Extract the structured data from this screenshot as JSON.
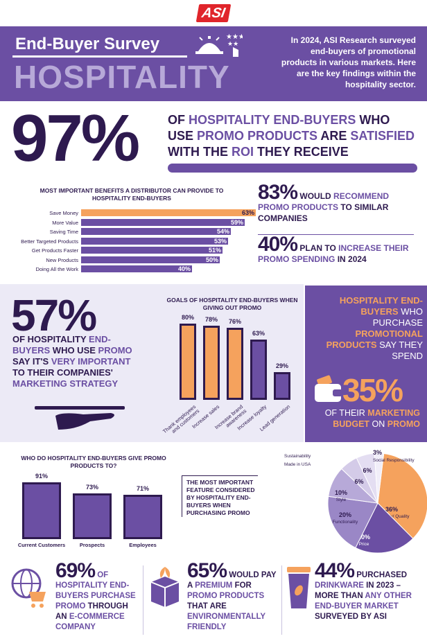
{
  "logo": "ASI",
  "header": {
    "title": "End-Buyer Survey",
    "subtitle": "HOSPITALITY",
    "description": "In 2024, ASI Research surveyed end-buyers of promotional products in various markets. Here are the key findings within the hospitality sector."
  },
  "stat97": {
    "number": "97%",
    "t1": "OF ",
    "t2": "HOSPITALITY END-BUYERS",
    "t3": " WHO USE ",
    "t4": "PROMO PRODUCTS",
    "t5": " ARE ",
    "t6": "SATISFIED",
    "t7": " WITH THE ",
    "t8": "ROI",
    "t9": " THEY RECEIVE"
  },
  "benefits": {
    "title": "MOST IMPORTANT BENEFITS A DISTRIBUTOR CAN PROVIDE TO HOSPITALITY END-BUYERS",
    "rows": [
      {
        "label": "Save Money",
        "value": "63%",
        "pct": 63,
        "highlight": true
      },
      {
        "label": "More Value",
        "value": "59%",
        "pct": 59,
        "highlight": false
      },
      {
        "label": "Saving Time",
        "value": "54%",
        "pct": 54,
        "highlight": false
      },
      {
        "label": "Better Targeted Products",
        "value": "53%",
        "pct": 53,
        "highlight": false
      },
      {
        "label": "Get Products Faster",
        "value": "51%",
        "pct": 51,
        "highlight": false
      },
      {
        "label": "New Products",
        "value": "50%",
        "pct": 50,
        "highlight": false
      },
      {
        "label": "Doing All the Work",
        "value": "40%",
        "pct": 40,
        "highlight": false
      }
    ]
  },
  "stat83": {
    "number": "83%",
    "t1": " WOULD ",
    "t2": "RECOMMEND PROMO PRODUCTS",
    "t3": " TO SIMILAR COMPANIES"
  },
  "stat40": {
    "number": "40%",
    "t1": " PLAN TO ",
    "t2": "INCREASE",
    "t3": " THEIR PROMO SPENDING",
    "t4": " IN 2024"
  },
  "stat57": {
    "number": "57%",
    "t1": "OF HOSPITALITY ",
    "t2": "END-BUYERS",
    "t3": " WHO USE ",
    "t4": "PROMO",
    "t5": " SAY IT'S ",
    "t6": "VERY IMPORTANT",
    "t7": " TO THEIR COMPANIES' ",
    "t8": "MARKETING STRATEGY"
  },
  "goals": {
    "title": "GOALS OF HOSPITALITY END-BUYERS WHEN GIVING OUT PROMO",
    "items": [
      {
        "label": "Thank employees and customers",
        "value": "80%",
        "pct": 80,
        "color": "#f5a25d"
      },
      {
        "label": "Increase sales",
        "value": "78%",
        "pct": 78,
        "color": "#f5a25d"
      },
      {
        "label": "Increase brand awareness",
        "value": "76%",
        "pct": 76,
        "color": "#f5a25d"
      },
      {
        "label": "Increase loyalty",
        "value": "63%",
        "pct": 63,
        "color": "#6b4fa3"
      },
      {
        "label": "Lead generation",
        "value": "29%",
        "pct": 29,
        "color": "#6b4fa3"
      }
    ]
  },
  "side": {
    "t1": "HOSPITALITY END-BUYERS",
    "t2": " WHO PURCHASE ",
    "t3": "PROMOTIONAL PRODUCTS",
    "t4": " SAY THEY SPEND",
    "number": "35%",
    "t5": "OF THEIR ",
    "t6": "MARKETING BUDGET",
    "t7": " ON ",
    "t8": "PROMO"
  },
  "who": {
    "title": "WHO DO HOSPITALITY END-BUYERS GIVE PROMO PRODUCTS TO?",
    "items": [
      {
        "label": "Current Customers",
        "value": "91%",
        "pct": 91
      },
      {
        "label": "Prospects",
        "value": "73%",
        "pct": 73
      },
      {
        "label": "Employees",
        "value": "71%",
        "pct": 71
      }
    ]
  },
  "feature": {
    "title": "THE MOST IMPORTANT FEATURE CONSIDERED BY HOSPITALITY END-BUYERS WHEN PURCHASING PROMO"
  },
  "chart_data": {
    "type": "pie",
    "slices": [
      {
        "label": "Durability/ Quality",
        "value": 36,
        "display": "36%",
        "color": "#f5a25d"
      },
      {
        "label": "Price",
        "value": 20,
        "display": "20%",
        "color": "#6b4fa3"
      },
      {
        "label": "Functionality",
        "value": 20,
        "display": "20%",
        "color": "#9a87c6"
      },
      {
        "label": "Style",
        "value": 10,
        "display": "10%",
        "color": "#b7a9d8"
      },
      {
        "label": "Made in USA",
        "value": 6,
        "display": "6%",
        "color": "#d4cbe8"
      },
      {
        "label": "Sustainability",
        "value": 6,
        "display": "6%",
        "color": "#e4def2"
      },
      {
        "label": "Social Responsibility",
        "value": 3,
        "display": "3%",
        "color": "#f1eef9"
      }
    ]
  },
  "stat69": {
    "number": "69%",
    "t1": " OF HOSPITALITY END-BUYERS PURCHASE PROMO",
    "t2": " THROUGH AN ",
    "t3": "E-COMMERCE COMPANY"
  },
  "stat65": {
    "number": "65%",
    "t1": " WOULD PAY A ",
    "t2": "PREMIUM",
    "t3": " FOR ",
    "t4": "PROMO PRODUCTS",
    "t5": " THAT ARE ",
    "t6": "ENVIRONMENTALLY FRIENDLY"
  },
  "stat44": {
    "number": "44%",
    "t1": " PURCHASED ",
    "t2": "DRINKWARE",
    "t3": " IN 2023 – MORE THAN ",
    "t4": "ANY OTHER END-BUYER MARKET",
    "t5": " SURVEYED BY ASI"
  },
  "colors": {
    "purple": "#6b4fa3",
    "dark": "#2e1a4f",
    "orange": "#f5a25d",
    "lavender": "#b7a9d8"
  }
}
